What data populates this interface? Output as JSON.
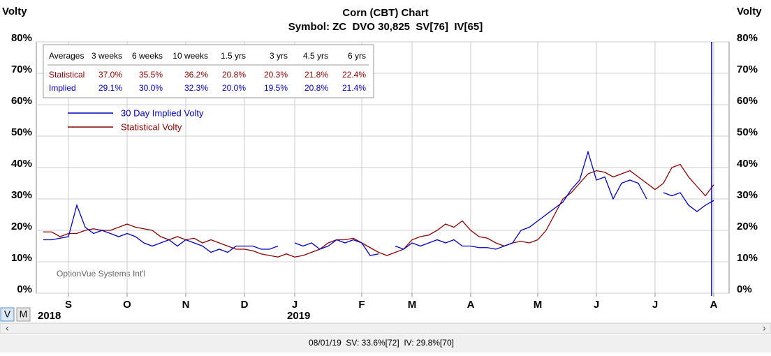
{
  "chart_data": {
    "type": "line",
    "title": "Corn (CBT) Chart",
    "subtitle": "Symbol: ZC  DVO 30,825  SV[76]  IV[65]",
    "y_label": "Volty",
    "y2_label": "Volty",
    "watermark": "OptionVue Systems Int'l",
    "years": [
      "2018",
      "2019"
    ],
    "categories": [
      null,
      null,
      null,
      "S",
      null,
      null,
      null,
      null,
      null,
      null,
      "O",
      null,
      null,
      null,
      null,
      null,
      null,
      "N",
      null,
      null,
      null,
      null,
      null,
      null,
      "D",
      null,
      null,
      null,
      null,
      null,
      "J",
      null,
      null,
      null,
      null,
      null,
      null,
      null,
      "F",
      null,
      null,
      null,
      null,
      null,
      "M",
      null,
      null,
      null,
      null,
      null,
      null,
      "A",
      null,
      null,
      null,
      null,
      null,
      null,
      null,
      "M",
      null,
      null,
      null,
      null,
      null,
      null,
      "J",
      null,
      null,
      null,
      null,
      null,
      null,
      "J",
      null,
      null,
      null,
      null,
      null,
      null,
      "A"
    ],
    "series": [
      {
        "name": "30 Day Implied Volty",
        "color": "#0000c0",
        "values": [
          17,
          17,
          17.5,
          18,
          28,
          21,
          19,
          20,
          19,
          18,
          19,
          18,
          16,
          15,
          16,
          17,
          15,
          17,
          16,
          15,
          13,
          14,
          13,
          15,
          15,
          15,
          14,
          14,
          15,
          null,
          16,
          15,
          16,
          14,
          15,
          17,
          16,
          17,
          16,
          12,
          12.5,
          null,
          15,
          14,
          16,
          15,
          16,
          17,
          16,
          17,
          15,
          15,
          14.5,
          14.5,
          14,
          15,
          16,
          20,
          21,
          23,
          25,
          27,
          29,
          33,
          36,
          45,
          36,
          37,
          30,
          35,
          36,
          35,
          30,
          null,
          32,
          31,
          32,
          28,
          26,
          28,
          29.5
        ]
      },
      {
        "name": "Statistical Volty",
        "color": "#8b0000",
        "values": [
          19.5,
          19.5,
          18,
          19,
          19,
          20,
          20.5,
          20,
          20,
          21,
          22,
          21,
          20.5,
          20,
          18,
          17,
          18,
          17,
          17.5,
          16,
          17,
          16,
          15,
          14,
          14,
          13.5,
          12.5,
          12,
          11.5,
          12.5,
          11.5,
          12,
          13,
          14,
          16,
          17,
          17,
          17.5,
          16,
          14.5,
          13,
          12,
          13,
          14,
          17,
          18,
          18.5,
          20,
          22,
          21,
          23,
          20,
          18,
          17.5,
          16,
          15,
          16,
          16.5,
          16,
          17,
          20,
          25,
          30,
          32,
          35,
          38,
          39,
          38.5,
          37,
          38,
          39,
          37,
          35,
          33,
          35,
          40,
          41,
          37,
          34,
          31,
          34.5
        ]
      }
    ],
    "ylim": [
      0,
      80
    ],
    "yticks": [
      {
        "value": 0,
        "label": "0%"
      },
      {
        "value": 10,
        "label": "10%"
      },
      {
        "value": 20,
        "label": "20%"
      },
      {
        "value": 30,
        "label": "30%"
      },
      {
        "value": 40,
        "label": "40%"
      },
      {
        "value": 50,
        "label": "50%"
      },
      {
        "value": 60,
        "label": "60%"
      },
      {
        "value": 70,
        "label": "70%"
      },
      {
        "value": 80,
        "label": "80%"
      }
    ],
    "grid": true
  },
  "averages_table": {
    "header": [
      "Averages",
      "3 weeks",
      "6 weeks",
      "10 weeks",
      "1.5 yrs",
      "3 yrs",
      "4.5 yrs",
      "6 yrs"
    ],
    "rows": [
      [
        "Statistical",
        "37.0%",
        "35.5%",
        "36.2%",
        "20.8%",
        "20.3%",
        "21.8%",
        "22.4%"
      ],
      [
        "Implied",
        "29.1%",
        "30.0%",
        "32.3%",
        "20.0%",
        "19.5%",
        "20.8%",
        "21.4%"
      ]
    ]
  },
  "buttons": [
    "V",
    "M"
  ],
  "status_bar": "08/01/19  SV: 33.6%[72]  IV: 29.8%[70]"
}
